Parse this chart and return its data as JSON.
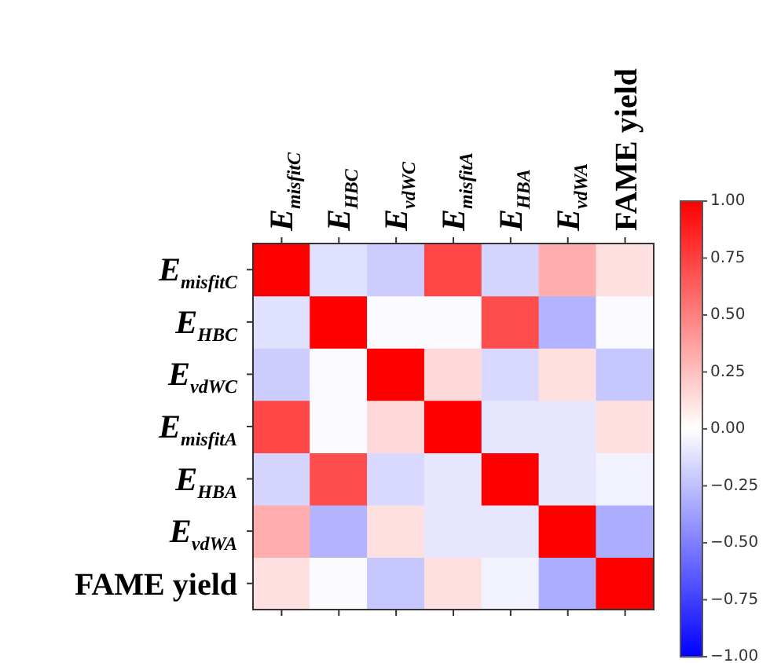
{
  "chart_data": {
    "type": "heatmap",
    "categories": [
      "E$_{misfitC}$",
      "E$_{HBC}$",
      "E$_{vdWC}$",
      "E$_{misfitA}$",
      "E$_{HBA}$",
      "E$_{vdWA}$",
      "FAME yield"
    ],
    "y_categories": [
      "E$_{misfitC}$",
      "E$_{HBC}$",
      "E$_{vdWC}$",
      "E$_{misfitA}$",
      "E$_{HBA}$",
      "E$_{vdWA}$",
      "FAME yield"
    ],
    "cells": [
      [
        1,
        -0.12,
        -0.2,
        0.72,
        -0.17,
        0.32,
        0.12
      ],
      [
        -0.12,
        1,
        -0.02,
        -0.02,
        0.7,
        -0.3,
        -0.02
      ],
      [
        -0.2,
        -0.02,
        1,
        0.15,
        -0.15,
        0.12,
        -0.22
      ],
      [
        0.72,
        -0.02,
        0.15,
        1,
        -0.1,
        -0.1,
        0.12
      ],
      [
        -0.17,
        0.7,
        -0.15,
        -0.1,
        1,
        -0.1,
        -0.05
      ],
      [
        0.32,
        -0.3,
        0.12,
        -0.1,
        -0.1,
        1,
        -0.32
      ],
      [
        0.12,
        -0.02,
        -0.22,
        0.12,
        -0.05,
        -0.32,
        1
      ]
    ],
    "clim": [
      -1,
      1
    ],
    "cticks": [
      {
        "value": 1,
        "label": "1.00"
      },
      {
        "value": 0.75,
        "label": "0.75"
      },
      {
        "value": 0.5,
        "label": "0.50"
      },
      {
        "value": 0.25,
        "label": "0.25"
      },
      {
        "value": 0,
        "label": "0.00"
      },
      {
        "value": -0.25,
        "label": "−0.25"
      },
      {
        "value": -0.5,
        "label": "−0.50"
      },
      {
        "value": -0.75,
        "label": "−0.75"
      },
      {
        "value": -1,
        "label": "−1.00"
      }
    ]
  }
}
